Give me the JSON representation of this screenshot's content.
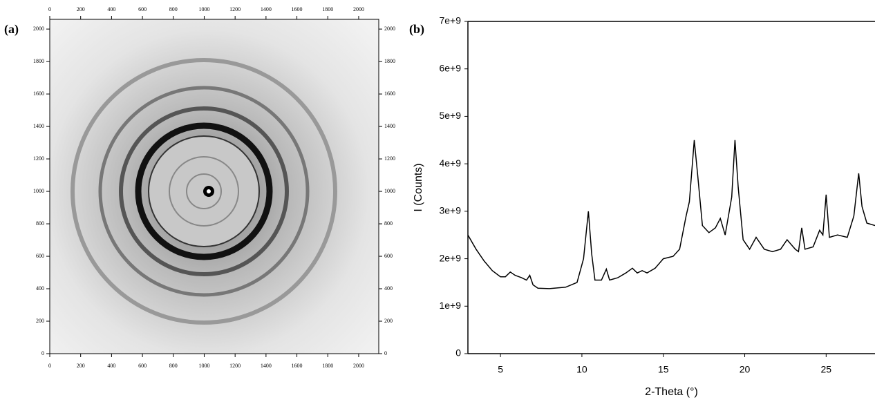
{
  "chart_data": [
    {
      "type": "image",
      "panel_label": "(a)",
      "xlim": [
        0,
        2130
      ],
      "ylim": [
        0,
        2060
      ],
      "xticks": [
        0,
        200,
        400,
        600,
        800,
        1000,
        1200,
        1400,
        1600,
        1800,
        2000
      ],
      "yticks": [
        0,
        200,
        400,
        600,
        800,
        1000,
        1200,
        1400,
        1600,
        1800,
        2000
      ]
    },
    {
      "type": "line",
      "panel_label": "(b)",
      "x_label": "2-Theta (°)",
      "y_label": "I (Counts)",
      "xlim": [
        3,
        28
      ],
      "ylim": [
        0,
        7000000000.0
      ],
      "xticks": [
        5,
        10,
        15,
        20,
        25
      ],
      "yticks": [
        0,
        {
          "value": 1000000000.0,
          "label": "1e+9"
        },
        {
          "value": 2000000000.0,
          "label": "2e+9"
        },
        {
          "value": 3000000000.0,
          "label": "3e+9"
        },
        {
          "value": 4000000000.0,
          "label": "4e+9"
        },
        {
          "value": 5000000000.0,
          "label": "5e+9"
        },
        {
          "value": 6000000000.0,
          "label": "6e+9"
        },
        {
          "value": 7000000000.0,
          "label": "7e+9"
        }
      ],
      "color": "#000000",
      "x": [
        3,
        3.5,
        4,
        4.5,
        5,
        5.3,
        5.6,
        5.9,
        6.3,
        6.6,
        6.8,
        7,
        7.3,
        8,
        9,
        9.7,
        10.1,
        10.4,
        10.6,
        10.8,
        11.2,
        11.5,
        11.7,
        12.2,
        12.7,
        13.1,
        13.4,
        13.7,
        14,
        14.5,
        15,
        15.6,
        16,
        16.4,
        16.6,
        16.9,
        17.1,
        17.4,
        17.8,
        18.2,
        18.5,
        18.8,
        19.2,
        19.4,
        19.6,
        19.9,
        20.3,
        20.7,
        21.2,
        21.7,
        22.2,
        22.6,
        23.1,
        23.3,
        23.5,
        23.7,
        24.2,
        24.6,
        24.8,
        25,
        25.2,
        25.7,
        26.3,
        26.7,
        27,
        27.2,
        27.5,
        28
      ],
      "values": [
        2500000000.0,
        2200000000.0,
        1950000000.0,
        1750000000.0,
        1620000000.0,
        1620000000.0,
        1720000000.0,
        1650000000.0,
        1600000000.0,
        1550000000.0,
        1650000000.0,
        1450000000.0,
        1380000000.0,
        1370000000.0,
        1400000000.0,
        1500000000.0,
        2000000000.0,
        3000000000.0,
        2100000000.0,
        1550000000.0,
        1550000000.0,
        1780000000.0,
        1550000000.0,
        1600000000.0,
        1700000000.0,
        1800000000.0,
        1700000000.0,
        1750000000.0,
        1700000000.0,
        1800000000.0,
        2000000000.0,
        2050000000.0,
        2200000000.0,
        2900000000.0,
        3200000000.0,
        4500000000.0,
        3800000000.0,
        2700000000.0,
        2550000000.0,
        2650000000.0,
        2850000000.0,
        2500000000.0,
        3300000000.0,
        4500000000.0,
        3500000000.0,
        2400000000.0,
        2200000000.0,
        2450000000.0,
        2200000000.0,
        2150000000.0,
        2200000000.0,
        2400000000.0,
        2200000000.0,
        2150000000.0,
        2650000000.0,
        2200000000.0,
        2250000000.0,
        2600000000.0,
        2500000000.0,
        3350000000.0,
        2450000000.0,
        2500000000.0,
        2450000000.0,
        2900000000.0,
        3800000000.0,
        3100000000.0,
        2750000000.0,
        2700000000.0
      ]
    }
  ]
}
